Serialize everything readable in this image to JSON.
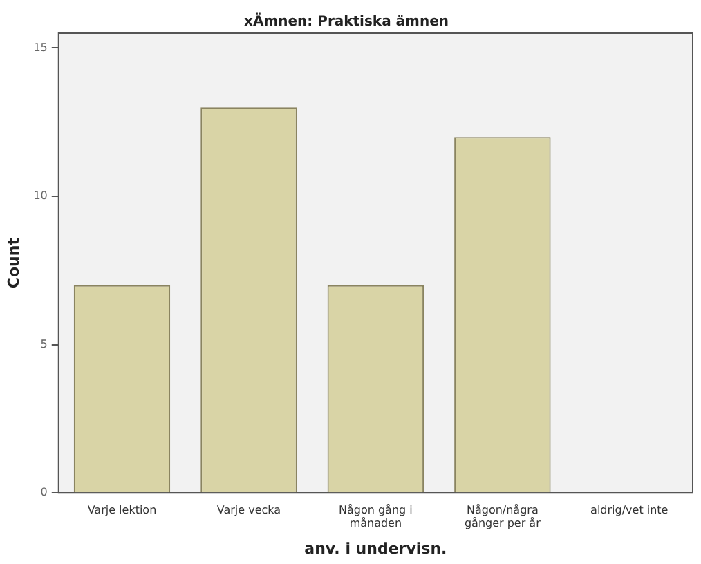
{
  "chart_data": {
    "type": "bar",
    "title": "xÄmnen: Praktiska ämnen",
    "xlabel": "anv. i undervisn.",
    "ylabel": "Count",
    "categories": [
      "Varje lektion",
      "Varje vecka",
      "Någon gång i\nmånaden",
      "Någon/några\ngånger per år",
      "aldrig/vet inte"
    ],
    "values": [
      7,
      13,
      7,
      12,
      0
    ],
    "color": "#d9d4a6",
    "ylim": [
      0,
      15.5
    ],
    "yticks": [
      0,
      5,
      10,
      15
    ],
    "grid": false,
    "legend": false
  }
}
